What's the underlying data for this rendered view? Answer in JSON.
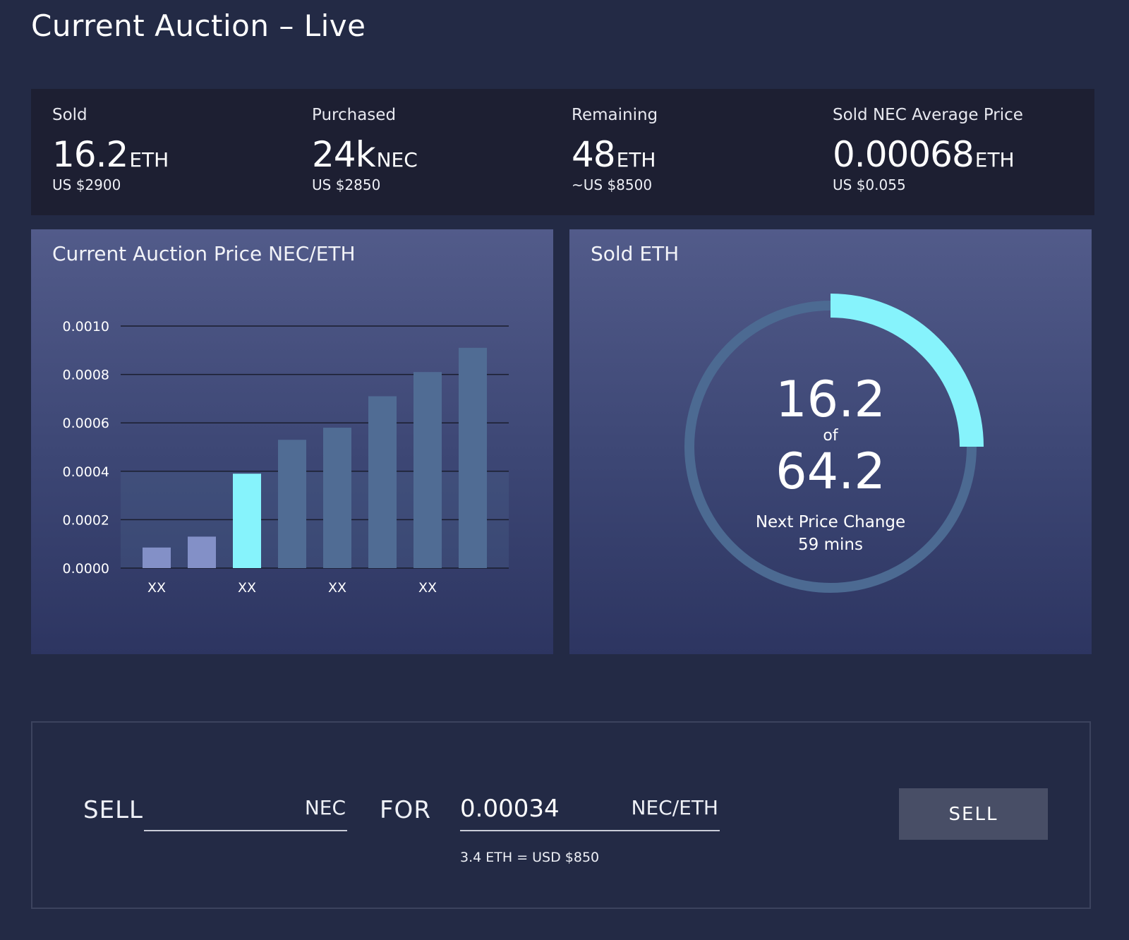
{
  "page": {
    "title": "Current Auction – Live"
  },
  "stats": [
    {
      "label": "Sold",
      "value": "16.2",
      "unit": "ETH",
      "sub": "US $2900"
    },
    {
      "label": "Purchased",
      "value": "24k",
      "unit": "NEC",
      "sub": "US $2850"
    },
    {
      "label": "Remaining",
      "value": "48",
      "unit": "ETH",
      "sub": "~US $8500"
    },
    {
      "label": "Sold NEC Average Price",
      "value": "0.00068",
      "unit": "ETH",
      "sub": "US $0.055"
    }
  ],
  "price_panel": {
    "title": "Current Auction Price NEC/ETH"
  },
  "sold_panel": {
    "title": "Sold ETH",
    "sold": "16.2",
    "of_label": "of",
    "total": "64.2",
    "next_change_label": "Next Price Change",
    "next_change_value": "59 mins",
    "progress_fraction": 0.25
  },
  "chart_data": {
    "type": "bar",
    "title": "Current Auction Price NEC/ETH",
    "xlabel": "",
    "ylabel": "",
    "ylim": [
      0,
      0.001
    ],
    "y_ticks": [
      "0.0000",
      "0.0002",
      "0.0004",
      "0.0006",
      "0.0008",
      "0.0010"
    ],
    "x_tick_labels": [
      "XX",
      "XX",
      "XX",
      "XX"
    ],
    "x_tick_positions": [
      0,
      2,
      4,
      6
    ],
    "grid": true,
    "values": [
      8.5e-05,
      0.00013,
      0.00039,
      0.00053,
      0.00058,
      0.00071,
      0.00081,
      0.00091
    ],
    "bar_states": [
      "past",
      "past",
      "current",
      "future",
      "future",
      "future",
      "future",
      "future"
    ],
    "colors": {
      "past": "#8390c7",
      "current": "#86f3fc",
      "future": "#506c94"
    }
  },
  "sell_form": {
    "sell_label": "SELL",
    "amount_value": "",
    "amount_unit": "NEC",
    "for_label": "FOR",
    "price_value": "0.00034",
    "price_unit": "NEC/ETH",
    "conversion": "3.4 ETH = USD $850",
    "button_label": "SELL"
  },
  "colors": {
    "background": "#232a45",
    "stats_bar": "#1d1f32",
    "accent": "#86f3fc",
    "gauge_track": "#4c6a92",
    "button": "#484e66"
  }
}
